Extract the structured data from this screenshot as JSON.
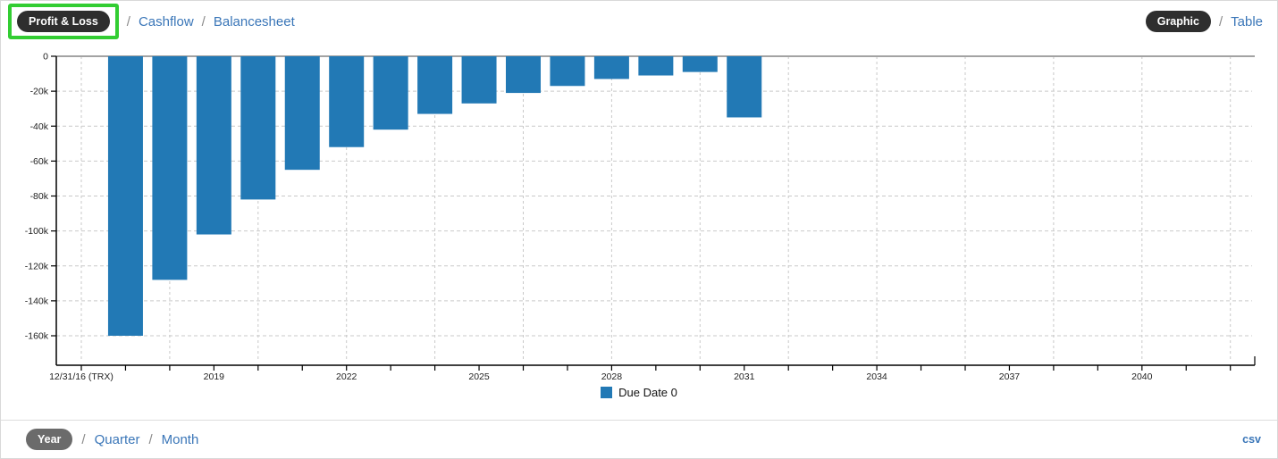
{
  "header": {
    "separator": "/",
    "views": [
      {
        "label": "Profit & Loss",
        "active": true,
        "highlighted": true
      },
      {
        "label": "Cashflow",
        "active": false
      },
      {
        "label": "Balancesheet",
        "active": false
      }
    ],
    "display_modes": [
      {
        "label": "Graphic",
        "active": true
      },
      {
        "label": "Table",
        "active": false
      }
    ]
  },
  "footer": {
    "separator": "/",
    "periods": [
      {
        "label": "Year",
        "active": true
      },
      {
        "label": "Quarter",
        "active": false
      },
      {
        "label": "Month",
        "active": false
      }
    ],
    "export_label": "csv"
  },
  "colors": {
    "bar": "#2279b5",
    "link_blue": "#3a76b8",
    "pill_dark": "#2e2e2e",
    "pill_gray": "#6b6b6b",
    "highlight_green": "#32cd32",
    "grid": "#c9c9c9",
    "zero_line": "#a3a3a3",
    "axis": "#000000",
    "axis_text": "#222222"
  },
  "chart_data": {
    "type": "bar",
    "title": "",
    "x_tick_labels": [
      "12/31/16 (TRX)",
      "2019",
      "2022",
      "2025",
      "2028",
      "2031",
      "2034",
      "2037",
      "2040"
    ],
    "x_label_step_years": 3,
    "x_total_year_ticks": 27,
    "grid": "dashed",
    "gridline_step_years": 2,
    "y_ticks": [
      "0",
      "-20k",
      "-40k",
      "-60k",
      "-80k",
      "-100k",
      "-120k",
      "-140k",
      "-160k"
    ],
    "y_tick_values": [
      0,
      -20000,
      -40000,
      -60000,
      -80000,
      -100000,
      -120000,
      -140000,
      -160000
    ],
    "ylim": [
      -177000,
      0
    ],
    "bars_start_year_offset": 1,
    "values": [
      -160000,
      -128000,
      -102000,
      -82000,
      -65000,
      -52000,
      -42000,
      -33000,
      -27000,
      -21000,
      -17000,
      -13000,
      -11000,
      -9000,
      -35000
    ],
    "legend": [
      {
        "label": "Due Date 0",
        "color": "#2279b5"
      }
    ],
    "legend_position": "bottom-center"
  }
}
